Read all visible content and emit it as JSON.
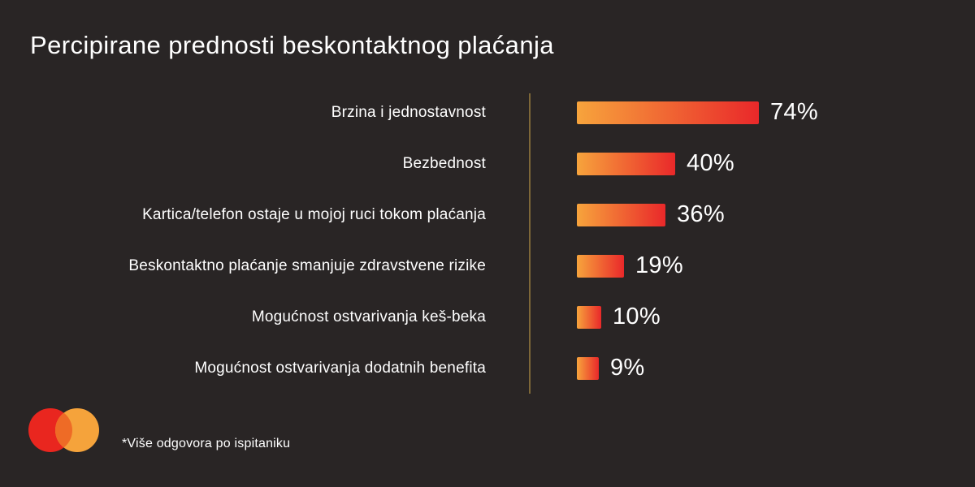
{
  "title": "Percipirane prednosti beskontaktnog plaćanja",
  "footnote": "*Više odgovora po ispitaniku",
  "logo": {
    "name": "mastercard-logo",
    "red_circle": "#E9261F",
    "yellow_circle": "#F5A33B",
    "overlap": "#EE6B26"
  },
  "colors": {
    "background": "#292525",
    "text": "#FFFFFF",
    "divider_line": "#7D6738",
    "bar_gradient_start": "#F7A43C",
    "bar_gradient_end": "#E9282A"
  },
  "chart_data": {
    "type": "bar",
    "orientation": "horizontal",
    "title": "Percipirane prednosti beskontaktnog plaćanja",
    "xlabel": "",
    "ylabel": "",
    "unit": "%",
    "xlim": [
      0,
      100
    ],
    "grid": false,
    "legend": false,
    "categories": [
      "Brzina i jednostavnost",
      "Bezbednost",
      "Kartica/telefon ostaje u mojoj ruci tokom plaćanja",
      "Beskontaktno plaćanje smanjuje zdravstvene rizike",
      "Mogućnost ostvarivanja keš-beka",
      "Mogućnost ostvarivanja dodatnih benefita"
    ],
    "values": [
      74,
      40,
      36,
      19,
      10,
      9
    ],
    "value_labels": [
      "74%",
      "40%",
      "36%",
      "19%",
      "10%",
      "9%"
    ],
    "note": "*Više odgovora po ispitaniku"
  }
}
